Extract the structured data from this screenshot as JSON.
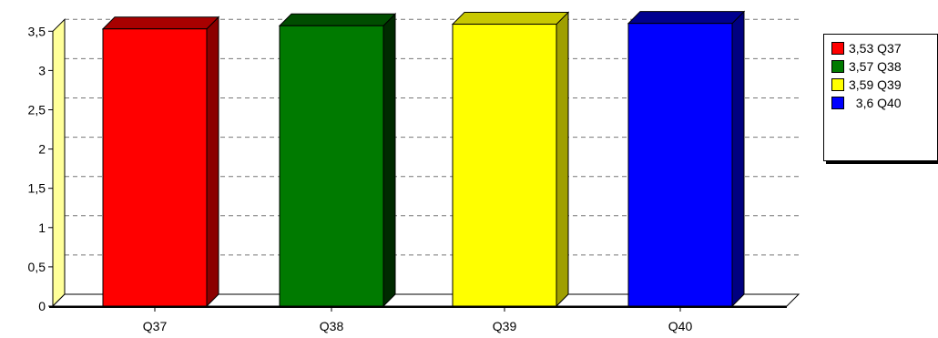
{
  "chart_data": {
    "type": "bar",
    "categories": [
      "Q37",
      "Q38",
      "Q39",
      "Q40"
    ],
    "values": [
      3.53,
      3.57,
      3.59,
      3.6
    ],
    "colors": [
      "#ff0000",
      "#007a00",
      "#ffff00",
      "#0000ff"
    ],
    "side_colors": [
      "#8b0000",
      "#002a00",
      "#9f9f00",
      "#000080"
    ],
    "top_colors": [
      "#a80000",
      "#004d00",
      "#c8c800",
      "#00008f"
    ],
    "ylim": [
      0,
      3.5
    ],
    "y_ticks": [
      "0",
      "0,5",
      "1",
      "1,5",
      "2",
      "2,5",
      "3",
      "3,5"
    ],
    "grid": "horizontal dashed",
    "legend_position": "right",
    "legend": [
      {
        "label": "3,53 Q37",
        "color": "#ff0000"
      },
      {
        "label": "3,57 Q38",
        "color": "#007a00"
      },
      {
        "label": "3,59 Q39",
        "color": "#ffff00"
      },
      {
        "label": "  3,6 Q40",
        "color": "#0000ff"
      }
    ]
  }
}
